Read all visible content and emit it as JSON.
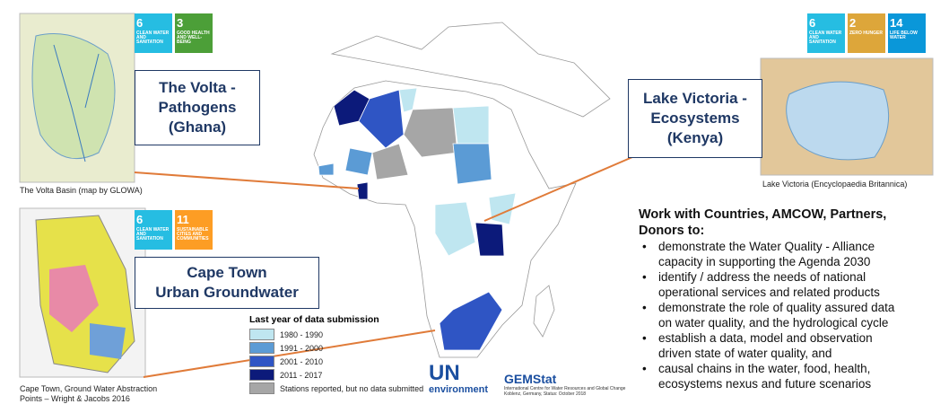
{
  "sdg_groups": [
    {
      "icons": [
        {
          "number": "6",
          "label": "CLEAN WATER AND SANITATION",
          "color": "#26bde2"
        },
        {
          "number": "3",
          "label": "GOOD HEALTH AND WELL-BEING",
          "color": "#4c9f38"
        }
      ]
    },
    {
      "icons": [
        {
          "number": "6",
          "label": "CLEAN WATER AND SANITATION",
          "color": "#26bde2"
        },
        {
          "number": "11",
          "label": "SUSTAINABLE CITIES AND COMMUNITIES",
          "color": "#fd9d24"
        }
      ]
    },
    {
      "icons": [
        {
          "number": "6",
          "label": "CLEAN WATER AND SANITATION",
          "color": "#26bde2"
        },
        {
          "number": "2",
          "label": "ZERO HUNGER",
          "color": "#dda63a"
        },
        {
          "number": "14",
          "label": "LIFE BELOW WATER",
          "color": "#0a97d9"
        }
      ]
    }
  ],
  "case_studies": [
    {
      "title": [
        "The Volta -",
        "Pathogens",
        "(Ghana)"
      ],
      "caption": [
        "The Volta Basin (map by GLOWA)"
      ]
    },
    {
      "title": [
        "Cape Town",
        "Urban Groundwater"
      ],
      "caption": [
        "Cape Town, Ground Water Abstraction",
        "Points – Wright & Jacobs 2016"
      ]
    },
    {
      "title": [
        "Lake Victoria -",
        "Ecosystems",
        "(Kenya)"
      ],
      "caption": [
        "Lake Victoria (Encyclopaedia Britannica)"
      ]
    }
  ],
  "legend": {
    "title": "Last year of data submission",
    "items": [
      {
        "label": "1980 - 1990",
        "color": "#bfe6f0"
      },
      {
        "label": "1991 - 2000",
        "color": "#5b9bd5"
      },
      {
        "label": "2001 - 2010",
        "color": "#2f55c4"
      },
      {
        "label": "2011 - 2017",
        "color": "#0c1a7a"
      },
      {
        "label": "Stations reported, but no data submitted",
        "color": "#a6a6a6"
      }
    ]
  },
  "logos": {
    "un": [
      "UN",
      "environment"
    ],
    "gemstat": "GEMStat",
    "gemstat_sub": [
      "International Centre for Water Resources and Global Change",
      "Koblenz, Germany, Status: October 2018"
    ]
  },
  "work": {
    "heading": [
      "Work with Countries, AMCOW, Partners,",
      "Donors to:"
    ],
    "bullets": [
      [
        "demonstrate the Water Quality - Alliance",
        "capacity in supporting the Agenda 2030"
      ],
      [
        "identify / address the needs of national",
        "operational services and related products"
      ],
      [
        "demonstrate the role of quality assured data",
        "on water quality, and the hydrological cycle"
      ],
      [
        "establish a data, model and observation",
        "driven state of water quality, and"
      ],
      [
        "causal chains in the water, food, health,",
        "ecosystems nexus and future scenarios"
      ]
    ]
  }
}
